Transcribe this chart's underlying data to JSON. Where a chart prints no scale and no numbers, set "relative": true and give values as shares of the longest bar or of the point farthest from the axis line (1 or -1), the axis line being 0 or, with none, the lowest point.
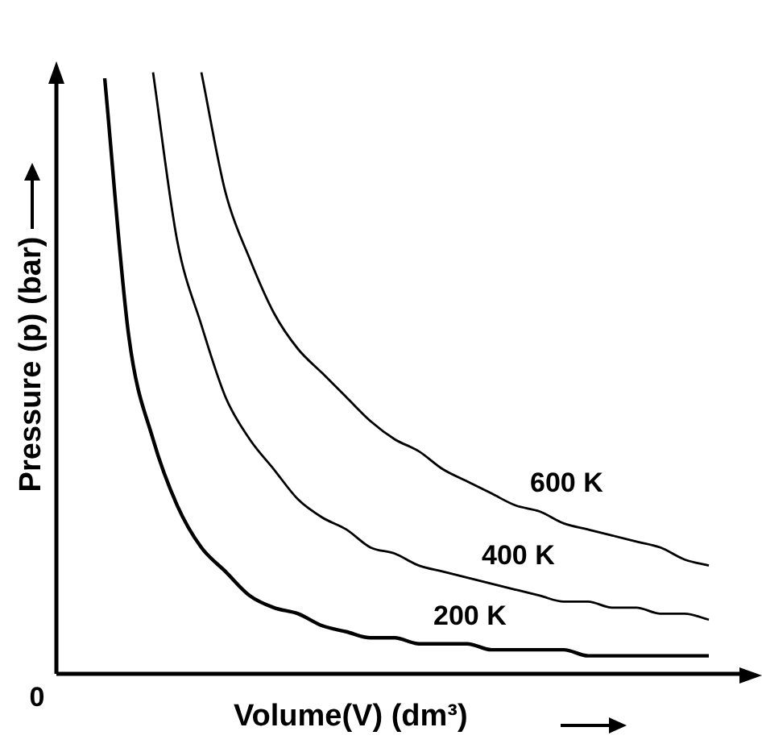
{
  "chart_data": {
    "type": "line",
    "relative": true,
    "xlabel": "Volume(V) (dm³)",
    "ylabel": "Pressure (p) (bar)",
    "annotations": [
      "0"
    ],
    "legend": false,
    "marker": "none",
    "categories": [
      null,
      null,
      null,
      null,
      null,
      null,
      null,
      null,
      null,
      null,
      null,
      null,
      null,
      null,
      null,
      null,
      null,
      null,
      null,
      null,
      null,
      null,
      null,
      null,
      null,
      null
    ],
    "series": [
      {
        "name": "200 K",
        "color": "#000000",
        "values": [
          0.99,
          0.56,
          0.39,
          0.28,
          0.21,
          0.17,
          0.13,
          0.11,
          0.1,
          0.08,
          0.07,
          0.06,
          0.06,
          0.05,
          0.05,
          0.05,
          0.04,
          0.04,
          0.04,
          0.04,
          0.03,
          0.03,
          0.03,
          0.03,
          0.03,
          0.03
        ]
      },
      {
        "name": "400 K",
        "color": "#000000",
        "values": [
          null,
          null,
          1.0,
          0.72,
          0.58,
          0.46,
          0.39,
          0.34,
          0.29,
          0.26,
          0.24,
          0.21,
          0.2,
          0.18,
          0.17,
          0.16,
          0.15,
          0.14,
          0.13,
          0.12,
          0.12,
          0.11,
          0.11,
          0.1,
          0.1,
          0.09
        ]
      },
      {
        "name": "600 K",
        "color": "#000000",
        "values": [
          null,
          null,
          null,
          null,
          1.0,
          0.8,
          0.69,
          0.6,
          0.54,
          0.5,
          0.46,
          0.42,
          0.39,
          0.37,
          0.34,
          0.32,
          0.3,
          0.28,
          0.27,
          0.25,
          0.24,
          0.23,
          0.22,
          0.21,
          0.19,
          0.18
        ]
      }
    ]
  }
}
